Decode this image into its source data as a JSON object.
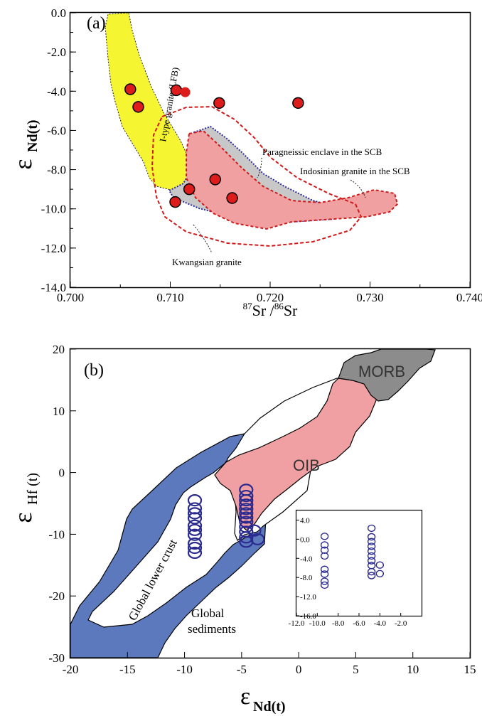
{
  "chart_data": [
    {
      "type": "scatter",
      "panel_label": "(a)",
      "xlabel_sup1": "87",
      "xlabel_main1": "Sr /",
      "xlabel_sup2": "86",
      "xlabel_main2": "Sr",
      "ylabel_symbol": "ε",
      "ylabel_sub": "Nd(t)",
      "xlim": [
        0.7,
        0.74
      ],
      "ylim": [
        -14.0,
        0.0
      ],
      "xticks": [
        "0.700",
        "0.710",
        "0.720",
        "0.730",
        "0.740"
      ],
      "yticks": [
        "0.0",
        "-2.0",
        "-4.0",
        "-6.0",
        "-8.0",
        "-10.0",
        "-12.0",
        "-14.0"
      ],
      "points": [
        {
          "x": 0.706,
          "y": -3.9
        },
        {
          "x": 0.7068,
          "y": -4.8
        },
        {
          "x": 0.7106,
          "y": -3.95
        },
        {
          "x": 0.7149,
          "y": -4.6
        },
        {
          "x": 0.7228,
          "y": -4.6
        },
        {
          "x": 0.7119,
          "y": -9.0
        },
        {
          "x": 0.7105,
          "y": -9.65
        },
        {
          "x": 0.7145,
          "y": -8.5
        },
        {
          "x": 0.7162,
          "y": -9.45
        }
      ],
      "extra_point": {
        "x": 0.7115,
        "y": -4.05
      },
      "regions": [
        {
          "name": "I-type granite (LFB)",
          "color": "#f5f531"
        },
        {
          "name": "Kwangsian granite",
          "color": "#c8c8c8"
        },
        {
          "name": "Paragneissic enclave in the SCB",
          "color": "#e44444"
        },
        {
          "name": "Indosinian granite in the SCB",
          "color": "#f0a0a0"
        }
      ]
    },
    {
      "type": "scatter",
      "panel_label": "(b)",
      "xlabel_symbol": "ε",
      "xlabel_sub": "Nd(t)",
      "ylabel_symbol": "ε",
      "ylabel_sub": "Hf (t)",
      "xlim": [
        -20,
        15
      ],
      "ylim": [
        -30,
        20
      ],
      "xticks": [
        "-20",
        "-15",
        "-10",
        "-5",
        "0",
        "5",
        "10",
        "15"
      ],
      "yticks": [
        "20",
        "10",
        "0",
        "-10",
        "-20",
        "-30"
      ],
      "regions": [
        {
          "name": "MORB",
          "color": "#8c8c8c"
        },
        {
          "name": "OIB",
          "color": "#f0a0a2"
        },
        {
          "name": "Global lower crust",
          "color": "#ffffff"
        },
        {
          "name": "Global sediments",
          "color": "#5c79bd"
        }
      ],
      "point_color": "#2a2a8f",
      "points_group1": [
        {
          "x": -9.1,
          "y": -4.5
        },
        {
          "x": -9.1,
          "y": -5.8
        },
        {
          "x": -9.1,
          "y": -6.6
        },
        {
          "x": -9.1,
          "y": -7.4
        },
        {
          "x": -9.1,
          "y": -8.6
        },
        {
          "x": -9.1,
          "y": -9.3
        },
        {
          "x": -9.1,
          "y": -10.1
        },
        {
          "x": -9.1,
          "y": -11.5
        },
        {
          "x": -9.1,
          "y": -12.2
        },
        {
          "x": -9.1,
          "y": -13.0
        }
      ],
      "points_group2": [
        {
          "x": -4.6,
          "y": -2.8
        },
        {
          "x": -4.6,
          "y": -3.8
        },
        {
          "x": -4.6,
          "y": -4.5
        },
        {
          "x": -4.6,
          "y": -5.2
        },
        {
          "x": -4.6,
          "y": -5.9
        },
        {
          "x": -4.6,
          "y": -6.6
        },
        {
          "x": -4.6,
          "y": -7.3
        },
        {
          "x": -4.6,
          "y": -8.0
        },
        {
          "x": -4.6,
          "y": -8.8
        },
        {
          "x": -4.6,
          "y": -9.6
        },
        {
          "x": -4.6,
          "y": -10.5
        },
        {
          "x": -4.6,
          "y": -11.2
        },
        {
          "x": -3.9,
          "y": -9.4
        },
        {
          "x": -3.6,
          "y": -10.8
        }
      ],
      "inset": {
        "xlim": [
          -12.0,
          0.0
        ],
        "ylim": [
          -16.0,
          6.0
        ],
        "xticks": [
          "-12.0",
          "-10.0",
          "-8.0",
          "-6.0",
          "-4.0",
          "-2.0"
        ],
        "yticks": [
          "4.0",
          "0.0",
          "-4.0",
          "-8.0",
          "-12.0",
          "-16.0"
        ],
        "points": [
          {
            "x": -9.3,
            "y": 0.6
          },
          {
            "x": -9.3,
            "y": -1.2
          },
          {
            "x": -9.3,
            "y": -2.3
          },
          {
            "x": -9.3,
            "y": -3.5
          },
          {
            "x": -9.3,
            "y": -6.3
          },
          {
            "x": -9.3,
            "y": -7.3
          },
          {
            "x": -9.3,
            "y": -8.8
          },
          {
            "x": -9.3,
            "y": -9.6
          },
          {
            "x": -4.8,
            "y": 2.3
          },
          {
            "x": -4.8,
            "y": 0.5
          },
          {
            "x": -4.8,
            "y": -0.5
          },
          {
            "x": -4.8,
            "y": -1.5
          },
          {
            "x": -4.8,
            "y": -2.5
          },
          {
            "x": -4.8,
            "y": -3.5
          },
          {
            "x": -4.8,
            "y": -4.5
          },
          {
            "x": -4.8,
            "y": -5.5
          },
          {
            "x": -4.8,
            "y": -6.8
          },
          {
            "x": -4.8,
            "y": -7.6
          },
          {
            "x": -4.0,
            "y": -5.4
          },
          {
            "x": -4.0,
            "y": -7.2
          }
        ]
      }
    }
  ]
}
